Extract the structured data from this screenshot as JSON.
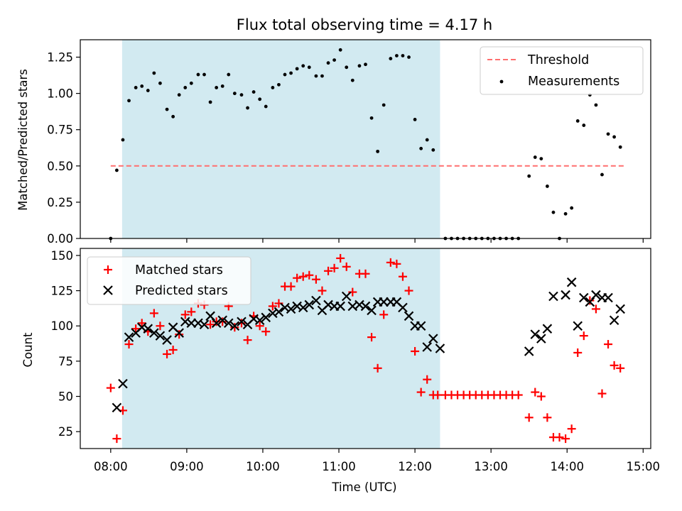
{
  "figure_title": "Flux total observing time = 4.17 h",
  "chart_data": [
    {
      "type": "scatter",
      "ylabel": "Matched/Predicted stars",
      "ylim": [
        0,
        1.37
      ],
      "yticks": [
        0.0,
        0.25,
        0.5,
        0.75,
        1.0,
        1.25
      ],
      "ytick_labels": [
        "0.00",
        "0.25",
        "0.50",
        "0.75",
        "1.00",
        "1.25"
      ],
      "xlim_hours": [
        7.6,
        15.1
      ],
      "observing_window_hours": [
        8.15,
        12.33
      ],
      "window_color": "#add8e6",
      "legend": {
        "placement": "top-right",
        "entries": [
          "Threshold",
          "Measurements"
        ]
      },
      "threshold": {
        "name": "Threshold",
        "value": 0.5,
        "x_start": 8.0,
        "x_end": 14.75,
        "color": "#ff6f6f"
      },
      "series": [
        {
          "name": "Measurements",
          "color": "#000000",
          "points": [
            [
              8.0,
              0.0
            ],
            [
              8.08,
              0.47
            ],
            [
              8.16,
              0.68
            ],
            [
              8.24,
              0.95
            ],
            [
              8.33,
              1.04
            ],
            [
              8.41,
              1.05
            ],
            [
              8.49,
              1.02
            ],
            [
              8.57,
              1.14
            ],
            [
              8.65,
              1.07
            ],
            [
              8.74,
              0.89
            ],
            [
              8.82,
              0.84
            ],
            [
              8.9,
              0.99
            ],
            [
              8.98,
              1.04
            ],
            [
              9.06,
              1.07
            ],
            [
              9.15,
              1.13
            ],
            [
              9.23,
              1.13
            ],
            [
              9.31,
              0.94
            ],
            [
              9.39,
              1.04
            ],
            [
              9.47,
              1.05
            ],
            [
              9.55,
              1.13
            ],
            [
              9.63,
              1.0
            ],
            [
              9.72,
              0.99
            ],
            [
              9.8,
              0.9
            ],
            [
              9.88,
              1.01
            ],
            [
              9.96,
              0.96
            ],
            [
              10.04,
              0.91
            ],
            [
              10.13,
              1.04
            ],
            [
              10.21,
              1.06
            ],
            [
              10.29,
              1.13
            ],
            [
              10.37,
              1.14
            ],
            [
              10.45,
              1.17
            ],
            [
              10.53,
              1.19
            ],
            [
              10.61,
              1.18
            ],
            [
              10.7,
              1.12
            ],
            [
              10.78,
              1.12
            ],
            [
              10.86,
              1.21
            ],
            [
              10.94,
              1.23
            ],
            [
              11.02,
              1.3
            ],
            [
              11.1,
              1.18
            ],
            [
              11.18,
              1.09
            ],
            [
              11.27,
              1.19
            ],
            [
              11.35,
              1.2
            ],
            [
              11.43,
              0.83
            ],
            [
              11.51,
              0.6
            ],
            [
              11.59,
              0.92
            ],
            [
              11.68,
              1.24
            ],
            [
              11.76,
              1.26
            ],
            [
              11.84,
              1.26
            ],
            [
              11.92,
              1.25
            ],
            [
              12.0,
              0.82
            ],
            [
              12.08,
              0.62
            ],
            [
              12.16,
              0.68
            ],
            [
              12.24,
              0.61
            ],
            [
              12.4,
              0.0
            ],
            [
              12.48,
              0.0
            ],
            [
              12.56,
              0.0
            ],
            [
              12.64,
              0.0
            ],
            [
              12.72,
              0.0
            ],
            [
              12.8,
              0.0
            ],
            [
              12.88,
              0.0
            ],
            [
              12.96,
              0.0
            ],
            [
              13.04,
              0.0
            ],
            [
              13.12,
              0.0
            ],
            [
              13.2,
              0.0
            ],
            [
              13.28,
              0.0
            ],
            [
              13.36,
              0.0
            ],
            [
              13.5,
              0.43
            ],
            [
              13.58,
              0.56
            ],
            [
              13.66,
              0.55
            ],
            [
              13.74,
              0.36
            ],
            [
              13.82,
              0.18
            ],
            [
              13.9,
              0.0
            ],
            [
              13.98,
              0.17
            ],
            [
              14.06,
              0.21
            ],
            [
              14.14,
              0.81
            ],
            [
              14.22,
              0.78
            ],
            [
              14.3,
              0.99
            ],
            [
              14.38,
              0.92
            ],
            [
              14.46,
              0.44
            ],
            [
              14.54,
              0.72
            ],
            [
              14.62,
              0.7
            ],
            [
              14.7,
              0.63
            ]
          ]
        }
      ]
    },
    {
      "type": "scatter",
      "ylabel": "Count",
      "xlabel": "Time (UTC)",
      "ylim": [
        13,
        155
      ],
      "yticks": [
        25,
        50,
        75,
        100,
        125,
        150
      ],
      "ytick_labels": [
        "25",
        "50",
        "75",
        "100",
        "125",
        "150"
      ],
      "xlim_hours": [
        7.6,
        15.1
      ],
      "xticks_hours": [
        8,
        9,
        10,
        11,
        12,
        13,
        14,
        15
      ],
      "xtick_labels": [
        "08:00",
        "09:00",
        "10:00",
        "11:00",
        "12:00",
        "13:00",
        "14:00",
        "15:00"
      ],
      "observing_window_hours": [
        8.15,
        12.33
      ],
      "window_color": "#add8e6",
      "legend": {
        "placement": "top-left",
        "entries": [
          "Matched stars",
          "Predicted stars"
        ]
      },
      "series": [
        {
          "name": "Matched stars",
          "marker": "plus",
          "color": "#ff0000",
          "points": [
            [
              8.0,
              56
            ],
            [
              8.08,
              20
            ],
            [
              8.16,
              40
            ],
            [
              8.24,
              87
            ],
            [
              8.33,
              98
            ],
            [
              8.41,
              102
            ],
            [
              8.49,
              96
            ],
            [
              8.57,
              109
            ],
            [
              8.65,
              100
            ],
            [
              8.74,
              80
            ],
            [
              8.82,
              83
            ],
            [
              8.9,
              94
            ],
            [
              8.98,
              108
            ],
            [
              9.06,
              110
            ],
            [
              9.15,
              116
            ],
            [
              9.23,
              115
            ],
            [
              9.31,
              101
            ],
            [
              9.39,
              103
            ],
            [
              9.47,
              103
            ],
            [
              9.55,
              114
            ],
            [
              9.63,
              99
            ],
            [
              9.72,
              102
            ],
            [
              9.8,
              90
            ],
            [
              9.88,
              107
            ],
            [
              9.96,
              100
            ],
            [
              10.04,
              96
            ],
            [
              10.13,
              114
            ],
            [
              10.21,
              116
            ],
            [
              10.29,
              128
            ],
            [
              10.37,
              128
            ],
            [
              10.45,
              134
            ],
            [
              10.53,
              135
            ],
            [
              10.61,
              136
            ],
            [
              10.7,
              133
            ],
            [
              10.78,
              125
            ],
            [
              10.86,
              139
            ],
            [
              10.94,
              141
            ],
            [
              11.02,
              148
            ],
            [
              11.1,
              142
            ],
            [
              11.18,
              124
            ],
            [
              11.27,
              137
            ],
            [
              11.35,
              137
            ],
            [
              11.43,
              92
            ],
            [
              11.51,
              70
            ],
            [
              11.59,
              108
            ],
            [
              11.68,
              145
            ],
            [
              11.76,
              144
            ],
            [
              11.84,
              135
            ],
            [
              11.92,
              125
            ],
            [
              12.0,
              82
            ],
            [
              12.08,
              53
            ],
            [
              12.16,
              62
            ],
            [
              12.24,
              51
            ],
            [
              12.3,
              51
            ],
            [
              12.4,
              51
            ],
            [
              12.48,
              51
            ],
            [
              12.56,
              51
            ],
            [
              12.64,
              51
            ],
            [
              12.72,
              51
            ],
            [
              12.8,
              51
            ],
            [
              12.88,
              51
            ],
            [
              12.96,
              51
            ],
            [
              13.04,
              51
            ],
            [
              13.12,
              51
            ],
            [
              13.2,
              51
            ],
            [
              13.28,
              51
            ],
            [
              13.36,
              51
            ],
            [
              13.5,
              35
            ],
            [
              13.58,
              53
            ],
            [
              13.66,
              50
            ],
            [
              13.74,
              35
            ],
            [
              13.82,
              21
            ],
            [
              13.9,
              21
            ],
            [
              13.98,
              20
            ],
            [
              14.06,
              27
            ],
            [
              14.14,
              81
            ],
            [
              14.22,
              93
            ],
            [
              14.3,
              118
            ],
            [
              14.38,
              112
            ],
            [
              14.46,
              52
            ],
            [
              14.54,
              87
            ],
            [
              14.62,
              72
            ],
            [
              14.7,
              70
            ]
          ]
        },
        {
          "name": "Predicted stars",
          "marker": "x",
          "color": "#000000",
          "points": [
            [
              8.08,
              42
            ],
            [
              8.16,
              59
            ],
            [
              8.24,
              92
            ],
            [
              8.33,
              95
            ],
            [
              8.41,
              99
            ],
            [
              8.49,
              98
            ],
            [
              8.57,
              95
            ],
            [
              8.65,
              93
            ],
            [
              8.74,
              90
            ],
            [
              8.82,
              99
            ],
            [
              8.9,
              95
            ],
            [
              8.98,
              103
            ],
            [
              9.06,
              102
            ],
            [
              9.15,
              102
            ],
            [
              9.23,
              101
            ],
            [
              9.31,
              107
            ],
            [
              9.39,
              102
            ],
            [
              9.47,
              104
            ],
            [
              9.55,
              102
            ],
            [
              9.63,
              100
            ],
            [
              9.72,
              103
            ],
            [
              9.8,
              101
            ],
            [
              9.88,
              105
            ],
            [
              9.96,
              104
            ],
            [
              10.04,
              106
            ],
            [
              10.13,
              109
            ],
            [
              10.21,
              110
            ],
            [
              10.29,
              113
            ],
            [
              10.37,
              112
            ],
            [
              10.45,
              114
            ],
            [
              10.53,
              113
            ],
            [
              10.61,
              115
            ],
            [
              10.7,
              118
            ],
            [
              10.78,
              111
            ],
            [
              10.86,
              115
            ],
            [
              10.94,
              114
            ],
            [
              11.02,
              114
            ],
            [
              11.1,
              121
            ],
            [
              11.18,
              114
            ],
            [
              11.27,
              115
            ],
            [
              11.35,
              114
            ],
            [
              11.43,
              111
            ],
            [
              11.51,
              117
            ],
            [
              11.59,
              117
            ],
            [
              11.68,
              117
            ],
            [
              11.76,
              117
            ],
            [
              11.84,
              113
            ],
            [
              11.92,
              107
            ],
            [
              12.0,
              100
            ],
            [
              12.08,
              100
            ],
            [
              12.16,
              85
            ],
            [
              12.24,
              91
            ],
            [
              12.33,
              84
            ],
            [
              13.5,
              82
            ],
            [
              13.58,
              94
            ],
            [
              13.66,
              91
            ],
            [
              13.74,
              98
            ],
            [
              13.82,
              121
            ],
            [
              13.98,
              122
            ],
            [
              14.06,
              131
            ],
            [
              14.14,
              100
            ],
            [
              14.22,
              120
            ],
            [
              14.3,
              117
            ],
            [
              14.38,
              122
            ],
            [
              14.46,
              120
            ],
            [
              14.54,
              120
            ],
            [
              14.62,
              104
            ],
            [
              14.7,
              112
            ]
          ]
        }
      ]
    }
  ]
}
